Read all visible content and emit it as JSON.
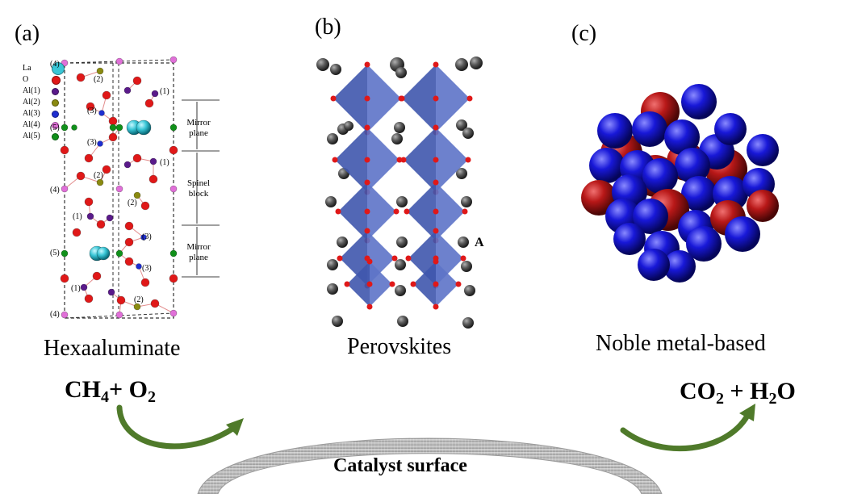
{
  "panels": {
    "a": {
      "letter": "(a)",
      "caption": "Hexaaluminate",
      "legend": [
        {
          "label": "La",
          "color": "#39c6d6",
          "icon": "la-atom-icon"
        },
        {
          "label": "O",
          "color": "#e01818",
          "icon": "oxygen-atom-icon"
        },
        {
          "label": "Al(1)",
          "color": "#5a1a8a",
          "icon": "al1-atom-icon"
        },
        {
          "label": "Al(2)",
          "color": "#8a8a10",
          "icon": "al2-atom-icon"
        },
        {
          "label": "Al(3)",
          "color": "#1e2ed0",
          "icon": "al3-atom-icon"
        },
        {
          "label": "Al(4)",
          "color": "#e070d8",
          "icon": "al4-atom-icon"
        },
        {
          "label": "Al(5)",
          "color": "#10901a",
          "icon": "al5-atom-icon"
        }
      ],
      "site_labels": [
        "(4)",
        "(2)",
        "(1)",
        "(3)",
        "(5)",
        "(3)",
        "(2)",
        "(1)",
        "(4)",
        "(2)",
        "(1)",
        "(3)",
        "(5)",
        "(3)",
        "(1)",
        "(2)",
        "(4)"
      ],
      "region_labels": {
        "mirror_top": "Mirror plane",
        "spinel": "Spinel block",
        "mirror_bottom": "Mirror plane"
      }
    },
    "b": {
      "letter": "(b)",
      "caption": "Perovskites",
      "clipped_letter": "A",
      "octahedron_color": "#4a62b8",
      "atom_color": "#5a5a5a"
    },
    "c": {
      "letter": "(c)",
      "caption": "Noble metal-based",
      "colors": {
        "blue": "#1010c8",
        "red": "#b81818"
      }
    }
  },
  "reaction": {
    "reactants": {
      "ch": "CH",
      "four": "4",
      "plus_o": "+ O",
      "two": "2"
    },
    "products": {
      "co": "CO",
      "two_a": "2",
      "plus_h": " + H",
      "two_b": "2",
      "o": "O"
    },
    "catalyst_label": "Catalyst surface",
    "arrow_color": "#4f7a2a",
    "surface_color": "#bdbdbd"
  }
}
